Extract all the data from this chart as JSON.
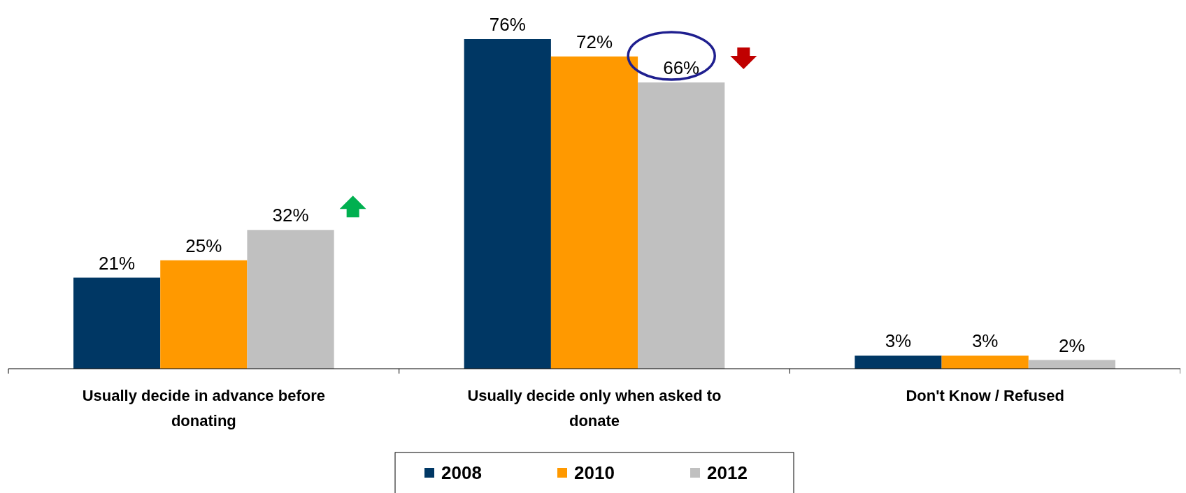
{
  "chart_data": {
    "type": "bar",
    "categories": [
      "Usually decide in advance before donating",
      "Usually decide only when asked to donate",
      "Don't Know / Refused"
    ],
    "series": [
      {
        "name": "2008",
        "color": "#003764",
        "values": [
          21,
          76,
          3
        ],
        "value_labels": [
          "21%",
          "76%",
          "3%"
        ]
      },
      {
        "name": "2010",
        "color": "#ff9900",
        "values": [
          25,
          72,
          3
        ],
        "value_labels": [
          "25%",
          "72%",
          "3%"
        ]
      },
      {
        "name": "2012",
        "color": "#c0c0c0",
        "values": [
          32,
          66,
          2
        ],
        "value_labels": [
          "32%",
          "66%",
          "2%"
        ]
      }
    ],
    "legend": "bottom"
  }
}
